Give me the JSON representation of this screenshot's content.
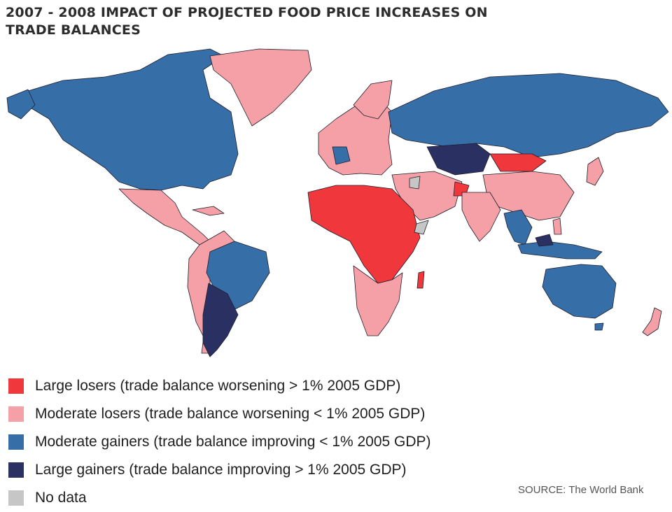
{
  "title_line1": "2007 - 2008 IMPACT OF PROJECTED FOOD PRICE INCREASES ON",
  "title_line2": "TRADE BALANCES",
  "categories": {
    "large_losers": {
      "label": "Large losers (trade balance worsening > 1% 2005 GDP)",
      "color": "#f0373c"
    },
    "moderate_losers": {
      "label": "Moderate losers (trade balance worsening < 1% 2005 GDP)",
      "color": "#f4a0a6"
    },
    "moderate_gainers": {
      "label": "Moderate gainers (trade balance improving < 1% 2005 GDP)",
      "color": "#366fa8"
    },
    "large_gainers": {
      "label": "Large gainers (trade balance improving > 1% 2005 GDP)",
      "color": "#2b3063"
    },
    "no_data": {
      "label": "No data",
      "color": "#c6c6c6"
    }
  },
  "source": "SOURCE: The World Bank",
  "colors": {
    "border": "#1d1d2a",
    "background": "#ffffff"
  }
}
